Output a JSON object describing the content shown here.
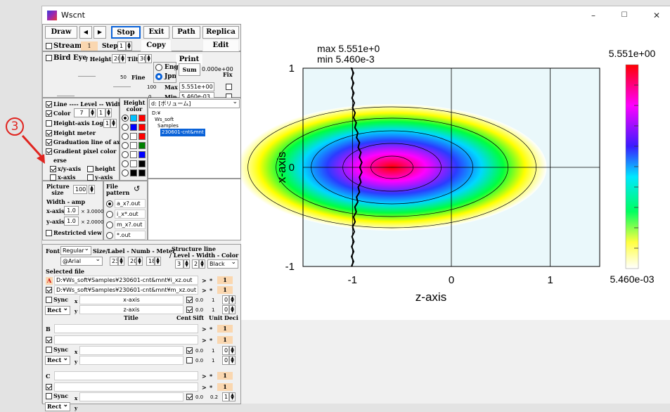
{
  "window": {
    "title": "Wscnt",
    "min": "–",
    "max": "☐",
    "close": "✕"
  },
  "toolbar": {
    "draw": "Draw",
    "prev": "◀",
    "next": "▶",
    "stop": "Stop",
    "exit": "Exit",
    "path": "Path",
    "replica": "Replica",
    "play": "▶"
  },
  "stream": {
    "label": "Stream",
    "value": "1",
    "step_label": "Step",
    "step_value": "1",
    "copy": "Copy",
    "edit": "Edit"
  },
  "birdeye": {
    "label": "Bird Eye",
    "height_label": "/ Height",
    "height_value": "20",
    "tilt_label": "Tilt",
    "tilt_value": "30",
    "print": "Print",
    "fine_value": "50",
    "fine_label": "Fine",
    "lang_eng": "Eng",
    "lang_jpn": "Jpn",
    "sum_label": "Sum",
    "sum_value": "0.000e+00",
    "fix_label": "Fix",
    "max_field": "100",
    "max_label": "Max",
    "max_value": "5.551e+00",
    "min_field": "0",
    "min_label": "Min",
    "min_value": "5.460e-03"
  },
  "options": {
    "line": "Line ---- Level -- Width",
    "color": "Color",
    "color_level": "7",
    "color_width": "1",
    "height_axis_log": "Height-axis Log",
    "height_axis_log_value": "1",
    "height_meter": "Height meter",
    "graduation": "Graduation line of axis",
    "gradient": "Gradient pixel color",
    "erse": "erse",
    "xy_axis": "x/y-axis",
    "height": "height",
    "x_axis": "x-axis",
    "y_axis": "y-axis",
    "height_color_title": "Height color"
  },
  "annotation": {
    "number": "3"
  },
  "drive": {
    "label": "d: [ボリューム]"
  },
  "tree": [
    "D:¥",
    "Ws_soft",
    "Samples",
    "230601-cnt&mnt"
  ],
  "picture": {
    "size_label": "Picture size",
    "size_value": "100",
    "width_amp": "Width - amp",
    "x_axis": "x-axis",
    "x_value": "1.0",
    "x_mult": "× 3.0000",
    "y_axis": "y-axis",
    "y_value": "1.0",
    "y_mult": "× 2.0000",
    "restricted": "Restricted view"
  },
  "file_pattern": {
    "label": "File pattern",
    "refresh": "↺",
    "items": [
      "a_x?.out",
      "i_x*.out",
      "m_x?.out",
      "*.out"
    ]
  },
  "font_row": {
    "font_label": "Font",
    "font_style": "Regular",
    "size_label": "Size/",
    "label_numb_meter": "Label - Numb - Meter",
    "structure": "Structure line",
    "structure2": "/ Level - Width - Color",
    "font_name": "@Arial",
    "size": "23",
    "label": "20",
    "numb": "18",
    "level": "3",
    "width": "2",
    "color": "Black"
  },
  "selected_file": {
    "label": "Selected file",
    "a_badge": "A",
    "file1": "D:¥Ws_soft¥Samples¥230601-cnt&mnt¥i_xz.out",
    "file2": "D:¥Ws_soft¥Samples¥230601-cnt&mnt¥m_xz.out",
    "sync": "Sync",
    "rect": "Rect",
    "x_lbl": "x",
    "y_lbl": "y",
    "x_title": "x-axis",
    "z_title": "z-axis",
    "num1": "1",
    "title_label": "Title",
    "cent": "Cent",
    "sift": "Sift",
    "unit": "Unit",
    "deci": "Deci",
    "val00": "0.0",
    "val1": "1",
    "val0": "0",
    "val02": "0.2",
    "gt": ">",
    "star": "*",
    "b_badge": "B",
    "c_badge": "C"
  },
  "chart_data": {
    "type": "heatmap",
    "title": "",
    "xlabel": "z-axis",
    "ylabel": "x-axis",
    "xlim": [
      -1.5,
      1.5
    ],
    "ylim": [
      -1,
      1
    ],
    "x_ticks": [
      "-1",
      "0",
      "1"
    ],
    "y_ticks": [
      "-1",
      "0",
      "1"
    ],
    "max_text": "max  5.551e+0",
    "min_text": "min  5.460e-3",
    "colorbar_max": "5.551e+00",
    "colorbar_min": "5.460e-03",
    "peak": {
      "z": -0.6,
      "x": 0.0,
      "value": 5.551
    },
    "grid": true,
    "colormap": [
      "#ff0000",
      "#ff00ff",
      "#0000ff",
      "#00ffff",
      "#00ff00",
      "#ffff00",
      "#ffffff"
    ]
  }
}
